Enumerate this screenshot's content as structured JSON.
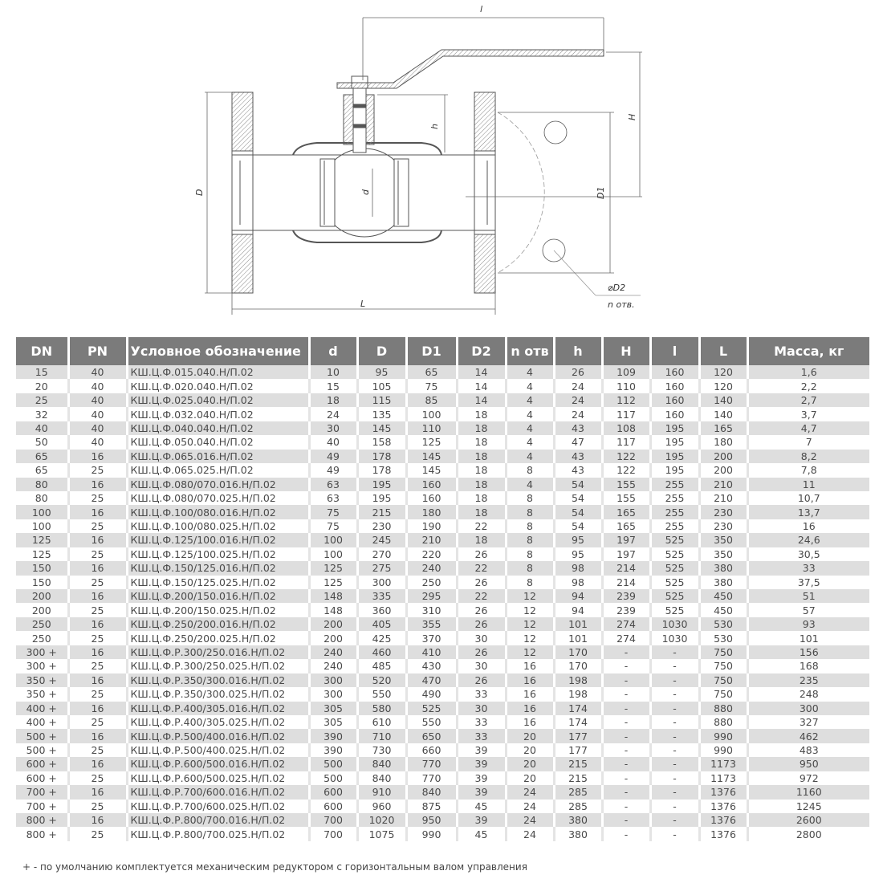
{
  "drawing": {
    "labels": {
      "l": "l",
      "H": "H",
      "D": "D",
      "D1": "D1",
      "h": "h",
      "d": "d",
      "L": "L",
      "D2": "⌀D2",
      "n": "n отв."
    }
  },
  "table": {
    "headers": [
      "DN",
      "PN",
      "Условное обозначение",
      "d",
      "D",
      "D1",
      "D2",
      "n отв",
      "h",
      "H",
      "l",
      "L",
      "Масса, кг"
    ],
    "rows": [
      [
        "15",
        "40",
        "КШ.Ц.Ф.015.040.Н/П.02",
        "10",
        "95",
        "65",
        "14",
        "4",
        "26",
        "109",
        "160",
        "120",
        "1,6"
      ],
      [
        "20",
        "40",
        "КШ.Ц.Ф.020.040.Н/П.02",
        "15",
        "105",
        "75",
        "14",
        "4",
        "24",
        "110",
        "160",
        "120",
        "2,2"
      ],
      [
        "25",
        "40",
        "КШ.Ц.Ф.025.040.Н/П.02",
        "18",
        "115",
        "85",
        "14",
        "4",
        "24",
        "112",
        "160",
        "140",
        "2,7"
      ],
      [
        "32",
        "40",
        "КШ.Ц.Ф.032.040.Н/П.02",
        "24",
        "135",
        "100",
        "18",
        "4",
        "24",
        "117",
        "160",
        "140",
        "3,7"
      ],
      [
        "40",
        "40",
        "КШ.Ц.Ф.040.040.Н/П.02",
        "30",
        "145",
        "110",
        "18",
        "4",
        "43",
        "108",
        "195",
        "165",
        "4,7"
      ],
      [
        "50",
        "40",
        "КШ.Ц.Ф.050.040.Н/П.02",
        "40",
        "158",
        "125",
        "18",
        "4",
        "47",
        "117",
        "195",
        "180",
        "7"
      ],
      [
        "65",
        "16",
        "КШ.Ц.Ф.065.016.Н/П.02",
        "49",
        "178",
        "145",
        "18",
        "4",
        "43",
        "122",
        "195",
        "200",
        "8,2"
      ],
      [
        "65",
        "25",
        "КШ.Ц.Ф.065.025.Н/П.02",
        "49",
        "178",
        "145",
        "18",
        "8",
        "43",
        "122",
        "195",
        "200",
        "7,8"
      ],
      [
        "80",
        "16",
        "КШ.Ц.Ф.080/070.016.Н/П.02",
        "63",
        "195",
        "160",
        "18",
        "4",
        "54",
        "155",
        "255",
        "210",
        "11"
      ],
      [
        "80",
        "25",
        "КШ.Ц.Ф.080/070.025.Н/П.02",
        "63",
        "195",
        "160",
        "18",
        "8",
        "54",
        "155",
        "255",
        "210",
        "10,7"
      ],
      [
        "100",
        "16",
        "КШ.Ц.Ф.100/080.016.Н/П.02",
        "75",
        "215",
        "180",
        "18",
        "8",
        "54",
        "165",
        "255",
        "230",
        "13,7"
      ],
      [
        "100",
        "25",
        "КШ.Ц.Ф.100/080.025.Н/П.02",
        "75",
        "230",
        "190",
        "22",
        "8",
        "54",
        "165",
        "255",
        "230",
        "16"
      ],
      [
        "125",
        "16",
        "КШ.Ц.Ф.125/100.016.Н/П.02",
        "100",
        "245",
        "210",
        "18",
        "8",
        "95",
        "197",
        "525",
        "350",
        "24,6"
      ],
      [
        "125",
        "25",
        "КШ.Ц.Ф.125/100.025.Н/П.02",
        "100",
        "270",
        "220",
        "26",
        "8",
        "95",
        "197",
        "525",
        "350",
        "30,5"
      ],
      [
        "150",
        "16",
        "КШ.Ц.Ф.150/125.016.Н/П.02",
        "125",
        "275",
        "240",
        "22",
        "8",
        "98",
        "214",
        "525",
        "380",
        "33"
      ],
      [
        "150",
        "25",
        "КШ.Ц.Ф.150/125.025.Н/П.02",
        "125",
        "300",
        "250",
        "26",
        "8",
        "98",
        "214",
        "525",
        "380",
        "37,5"
      ],
      [
        "200",
        "16",
        "КШ.Ц.Ф.200/150.016.Н/П.02",
        "148",
        "335",
        "295",
        "22",
        "12",
        "94",
        "239",
        "525",
        "450",
        "51"
      ],
      [
        "200",
        "25",
        "КШ.Ц.Ф.200/150.025.Н/П.02",
        "148",
        "360",
        "310",
        "26",
        "12",
        "94",
        "239",
        "525",
        "450",
        "57"
      ],
      [
        "250",
        "16",
        "КШ.Ц.Ф.250/200.016.Н/П.02",
        "200",
        "405",
        "355",
        "26",
        "12",
        "101",
        "274",
        "1030",
        "530",
        "93"
      ],
      [
        "250",
        "25",
        "КШ.Ц.Ф.250/200.025.Н/П.02",
        "200",
        "425",
        "370",
        "30",
        "12",
        "101",
        "274",
        "1030",
        "530",
        "101"
      ],
      [
        "300 +",
        "16",
        "КШ.Ц.Ф.Р.300/250.016.Н/П.02",
        "240",
        "460",
        "410",
        "26",
        "12",
        "170",
        "-",
        "-",
        "750",
        "156"
      ],
      [
        "300 +",
        "25",
        "КШ.Ц.Ф.Р.300/250.025.Н/П.02",
        "240",
        "485",
        "430",
        "30",
        "16",
        "170",
        "-",
        "-",
        "750",
        "168"
      ],
      [
        "350 +",
        "16",
        "КШ.Ц.Ф.Р.350/300.016.Н/П.02",
        "300",
        "520",
        "470",
        "26",
        "16",
        "198",
        "-",
        "-",
        "750",
        "235"
      ],
      [
        "350 +",
        "25",
        "КШ.Ц.Ф.Р.350/300.025.Н/П.02",
        "300",
        "550",
        "490",
        "33",
        "16",
        "198",
        "-",
        "-",
        "750",
        "248"
      ],
      [
        "400 +",
        "16",
        "КШ.Ц.Ф.Р.400/305.016.Н/П.02",
        "305",
        "580",
        "525",
        "30",
        "16",
        "174",
        "-",
        "-",
        "880",
        "300"
      ],
      [
        "400 +",
        "25",
        "КШ.Ц.Ф.Р.400/305.025.Н/П.02",
        "305",
        "610",
        "550",
        "33",
        "16",
        "174",
        "-",
        "-",
        "880",
        "327"
      ],
      [
        "500 +",
        "16",
        "КШ.Ц.Ф.Р.500/400.016.Н/П.02",
        "390",
        "710",
        "650",
        "33",
        "20",
        "177",
        "-",
        "-",
        "990",
        "462"
      ],
      [
        "500 +",
        "25",
        "КШ.Ц.Ф.Р.500/400.025.Н/П.02",
        "390",
        "730",
        "660",
        "39",
        "20",
        "177",
        "-",
        "-",
        "990",
        "483"
      ],
      [
        "600 +",
        "16",
        "КШ.Ц.Ф.Р.600/500.016.Н/П.02",
        "500",
        "840",
        "770",
        "39",
        "20",
        "215",
        "-",
        "-",
        "1173",
        "950"
      ],
      [
        "600 +",
        "25",
        "КШ.Ц.Ф.Р.600/500.025.Н/П.02",
        "500",
        "840",
        "770",
        "39",
        "20",
        "215",
        "-",
        "-",
        "1173",
        "972"
      ],
      [
        "700 +",
        "16",
        "КШ.Ц.Ф.Р.700/600.016.Н/П.02",
        "600",
        "910",
        "840",
        "39",
        "24",
        "285",
        "-",
        "-",
        "1376",
        "1160"
      ],
      [
        "700 +",
        "25",
        "КШ.Ц.Ф.Р.700/600.025.Н/П.02",
        "600",
        "960",
        "875",
        "45",
        "24",
        "285",
        "-",
        "-",
        "1376",
        "1245"
      ],
      [
        "800 +",
        "16",
        "КШ.Ц.Ф.Р.800/700.016.Н/П.02",
        "700",
        "1020",
        "950",
        "39",
        "24",
        "380",
        "-",
        "-",
        "1376",
        "2600"
      ],
      [
        "800 +",
        "25",
        "КШ.Ц.Ф.Р.800/700.025.Н/П.02",
        "700",
        "1075",
        "990",
        "45",
        "24",
        "380",
        "-",
        "-",
        "1376",
        "2800"
      ]
    ]
  },
  "footnote": "+ - по умолчанию комплектуется механическим редуктором с горизонтальным валом управления"
}
